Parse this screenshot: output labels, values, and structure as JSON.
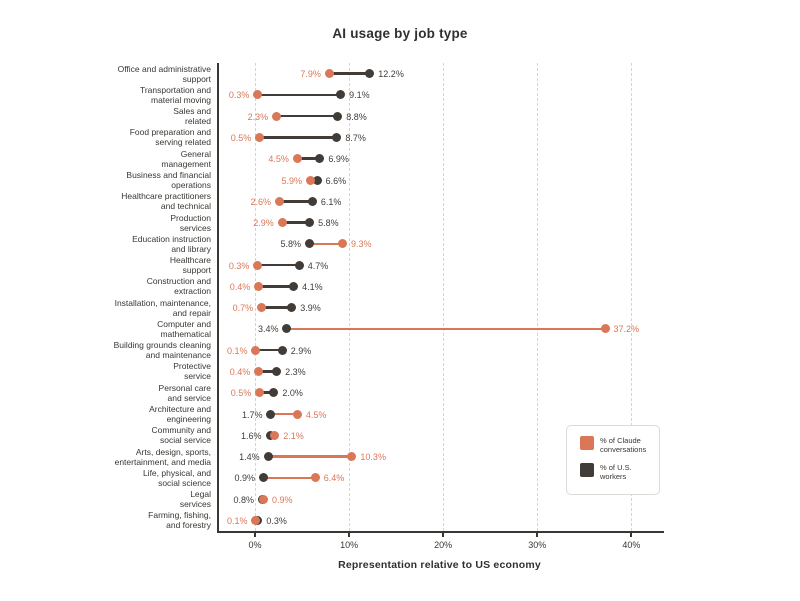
{
  "chart_data": {
    "type": "dumbbell",
    "title": "AI usage by job type",
    "xlabel": "Representation relative to US economy",
    "x_ticks": [
      {
        "value": 0,
        "label": "0%"
      },
      {
        "value": 10,
        "label": "10%"
      },
      {
        "value": 20,
        "label": "20%"
      },
      {
        "value": 30,
        "label": "30%"
      },
      {
        "value": 40,
        "label": "40%"
      }
    ],
    "xlim": [
      -3.8,
      43.5
    ],
    "grid": "vertical-dashed",
    "legend_position": "lower-right",
    "series": [
      {
        "id": "claude",
        "name": "% of Claude conversations",
        "color": "#d97757"
      },
      {
        "id": "workers",
        "name": "% of U.S. workers",
        "color": "#413c37"
      }
    ],
    "rows": [
      {
        "label": "Office and administrative\nsupport",
        "claude": 7.9,
        "workers": 12.2
      },
      {
        "label": "Transportation and\nmaterial moving",
        "claude": 0.3,
        "workers": 9.1
      },
      {
        "label": "Sales and\nrelated",
        "claude": 2.3,
        "workers": 8.8
      },
      {
        "label": "Food preparation and\nserving related",
        "claude": 0.5,
        "workers": 8.7
      },
      {
        "label": "General\nmanagement",
        "claude": 4.5,
        "workers": 6.9
      },
      {
        "label": "Business and financial\noperations",
        "claude": 5.9,
        "workers": 6.6
      },
      {
        "label": "Healthcare practitioners\nand technical",
        "claude": 2.6,
        "workers": 6.1
      },
      {
        "label": "Production\nservices",
        "claude": 2.9,
        "workers": 5.8
      },
      {
        "label": "Education instruction\nand library",
        "claude": 9.3,
        "workers": 5.8
      },
      {
        "label": "Healthcare\nsupport",
        "claude": 0.3,
        "workers": 4.7
      },
      {
        "label": "Construction and\nextraction",
        "claude": 0.4,
        "workers": 4.1
      },
      {
        "label": "Installation, maintenance,\nand repair",
        "claude": 0.7,
        "workers": 3.9
      },
      {
        "label": "Computer and\nmathematical",
        "claude": 37.2,
        "workers": 3.4
      },
      {
        "label": "Building grounds cleaning\nand maintenance",
        "claude": 0.1,
        "workers": 2.9
      },
      {
        "label": "Protective\nservice",
        "claude": 0.4,
        "workers": 2.3
      },
      {
        "label": "Personal care\nand service",
        "claude": 0.5,
        "workers": 2.0
      },
      {
        "label": "Architecture and\nengineering",
        "claude": 4.5,
        "workers": 1.7
      },
      {
        "label": "Community and\nsocial service",
        "claude": 2.1,
        "workers": 1.6
      },
      {
        "label": "Arts, design, sports,\nentertainment, and media",
        "claude": 10.3,
        "workers": 1.4
      },
      {
        "label": "Life, physical, and\nsocial science",
        "claude": 6.4,
        "workers": 0.9
      },
      {
        "label": "Legal\nservices",
        "claude": 0.9,
        "workers": 0.8
      },
      {
        "label": "Farming, fishing,\nand forestry",
        "claude": 0.1,
        "workers": 0.3
      }
    ]
  }
}
